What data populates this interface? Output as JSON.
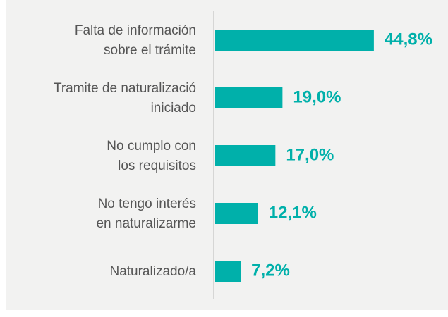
{
  "chart_data": {
    "type": "bar",
    "orientation": "horizontal",
    "color": "#00b0aa",
    "categories": [
      [
        "Falta de información",
        "sobre el trámite"
      ],
      [
        "Tramite de naturalizació",
        "iniciado"
      ],
      [
        "No cumplo con",
        "los requisitos"
      ],
      [
        "No tengo interés",
        "en naturalizarme"
      ],
      [
        "Naturalizado/a"
      ]
    ],
    "values": [
      44.8,
      19.0,
      17.0,
      12.1,
      7.2
    ],
    "value_labels": [
      "44,8%",
      "19,0%",
      "17,0%",
      "12,1%",
      "7,2%"
    ]
  }
}
